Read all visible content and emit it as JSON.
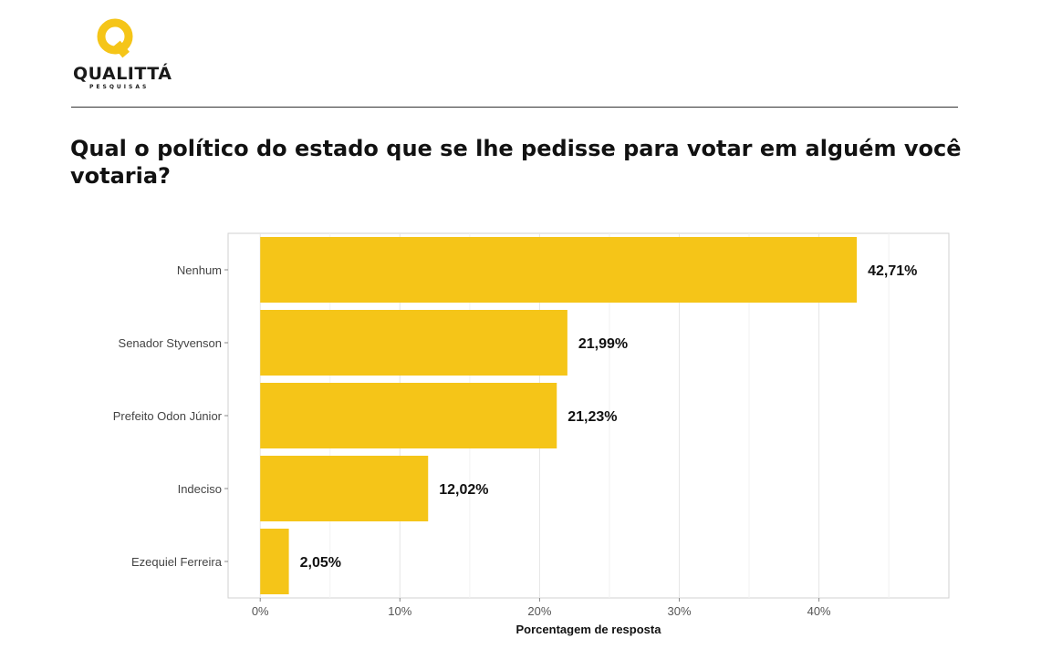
{
  "brand": {
    "name": "QUALITTÁ",
    "subtitle": "PESQUISAS",
    "logo_letter": "Q",
    "color": "#F5C518"
  },
  "chart_data": {
    "type": "bar",
    "orientation": "horizontal",
    "title": "Qual o político do estado que se lhe pedisse para votar em alguém você votaria?",
    "categories": [
      "Nenhum",
      "Senador Styvenson",
      "Prefeito Odon Júnior",
      "Indeciso",
      "Ezequiel Ferreira"
    ],
    "values": [
      42.71,
      21.99,
      21.23,
      12.02,
      2.05
    ],
    "value_labels": [
      "42,71%",
      "21,99%",
      "21,23%",
      "12,02%",
      "2,05%"
    ],
    "xlabel": "Porcentagem de resposta",
    "ylabel": "",
    "xticks": [
      0,
      10,
      20,
      30,
      40
    ],
    "xtick_labels": [
      "0%",
      "10%",
      "20%",
      "30%",
      "40%"
    ],
    "xlim": [
      -2.3,
      49.3
    ],
    "grid": true,
    "bar_color": "#F5C518"
  }
}
